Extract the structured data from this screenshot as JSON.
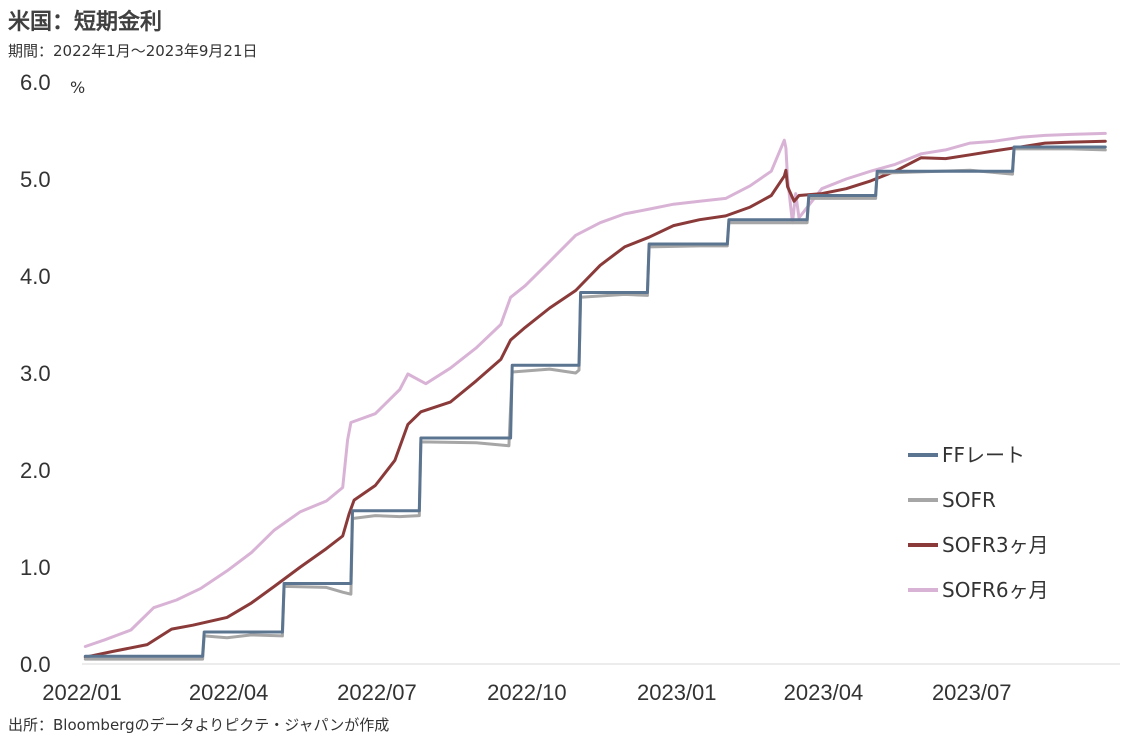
{
  "header": {
    "title": "米国：短期金利",
    "subtitle": "期間：2022年1月～2023年9月21日"
  },
  "footer": {
    "source": "出所：Bloombergのデータよりピクテ・ジャパンが作成"
  },
  "chart_data": {
    "type": "line",
    "y_unit": "%",
    "ylim": [
      0,
      6
    ],
    "y_ticks": [
      "0.0",
      "1.0",
      "2.0",
      "3.0",
      "4.0",
      "5.0",
      "6.0"
    ],
    "xlim": [
      "2022-01-01",
      "2023-09-30"
    ],
    "x_ticks": [
      {
        "date": "2022-01-01",
        "label": "2022/01"
      },
      {
        "date": "2022-04-01",
        "label": "2022/04"
      },
      {
        "date": "2022-07-01",
        "label": "2022/07"
      },
      {
        "date": "2022-10-01",
        "label": "2022/10"
      },
      {
        "date": "2023-01-01",
        "label": "2023/01"
      },
      {
        "date": "2023-04-01",
        "label": "2023/04"
      },
      {
        "date": "2023-07-01",
        "label": "2023/07"
      }
    ],
    "grid": false,
    "legend_position": "bottom-right",
    "series": [
      {
        "name": "FFレート",
        "color": "#5B7490",
        "points": [
          [
            "2022-01-03",
            0.08
          ],
          [
            "2022-03-16",
            0.08
          ],
          [
            "2022-03-17",
            0.33
          ],
          [
            "2022-05-04",
            0.33
          ],
          [
            "2022-05-05",
            0.83
          ],
          [
            "2022-06-15",
            0.83
          ],
          [
            "2022-06-16",
            1.58
          ],
          [
            "2022-07-27",
            1.58
          ],
          [
            "2022-07-28",
            2.33
          ],
          [
            "2022-09-21",
            2.33
          ],
          [
            "2022-09-22",
            3.08
          ],
          [
            "2022-11-02",
            3.08
          ],
          [
            "2022-11-03",
            3.83
          ],
          [
            "2022-12-14",
            3.83
          ],
          [
            "2022-12-15",
            4.33
          ],
          [
            "2023-02-01",
            4.33
          ],
          [
            "2023-02-02",
            4.58
          ],
          [
            "2023-03-22",
            4.58
          ],
          [
            "2023-03-23",
            4.83
          ],
          [
            "2023-05-03",
            4.83
          ],
          [
            "2023-05-04",
            5.08
          ],
          [
            "2023-07-26",
            5.08
          ],
          [
            "2023-07-27",
            5.33
          ],
          [
            "2023-09-21",
            5.33
          ]
        ]
      },
      {
        "name": "SOFR",
        "color": "#A6A6A6",
        "points": [
          [
            "2022-01-03",
            0.05
          ],
          [
            "2022-03-16",
            0.05
          ],
          [
            "2022-03-17",
            0.29
          ],
          [
            "2022-03-31",
            0.27
          ],
          [
            "2022-04-15",
            0.3
          ],
          [
            "2022-05-04",
            0.29
          ],
          [
            "2022-05-05",
            0.8
          ],
          [
            "2022-05-31",
            0.79
          ],
          [
            "2022-06-10",
            0.74
          ],
          [
            "2022-06-15",
            0.72
          ],
          [
            "2022-06-16",
            1.5
          ],
          [
            "2022-06-30",
            1.53
          ],
          [
            "2022-07-15",
            1.52
          ],
          [
            "2022-07-27",
            1.53
          ],
          [
            "2022-07-28",
            2.29
          ],
          [
            "2022-08-31",
            2.28
          ],
          [
            "2022-09-20",
            2.25
          ],
          [
            "2022-09-22",
            3.01
          ],
          [
            "2022-10-15",
            3.04
          ],
          [
            "2022-10-31",
            3.0
          ],
          [
            "2022-11-02",
            3.03
          ],
          [
            "2022-11-03",
            3.78
          ],
          [
            "2022-11-30",
            3.81
          ],
          [
            "2022-12-14",
            3.8
          ],
          [
            "2022-12-15",
            4.3
          ],
          [
            "2023-01-15",
            4.31
          ],
          [
            "2023-02-01",
            4.31
          ],
          [
            "2023-02-02",
            4.55
          ],
          [
            "2023-03-01",
            4.55
          ],
          [
            "2023-03-22",
            4.55
          ],
          [
            "2023-03-23",
            4.8
          ],
          [
            "2023-04-15",
            4.8
          ],
          [
            "2023-05-03",
            4.8
          ],
          [
            "2023-05-04",
            5.06
          ],
          [
            "2023-06-30",
            5.09
          ],
          [
            "2023-07-26",
            5.05
          ],
          [
            "2023-07-27",
            5.31
          ],
          [
            "2023-08-31",
            5.31
          ],
          [
            "2023-09-21",
            5.3
          ]
        ]
      },
      {
        "name": "SOFR3ヶ月",
        "color": "#8B3A3A",
        "points": [
          [
            "2022-01-03",
            0.07
          ],
          [
            "2022-01-20",
            0.13
          ],
          [
            "2022-02-10",
            0.2
          ],
          [
            "2022-02-25",
            0.36
          ],
          [
            "2022-03-10",
            0.4
          ],
          [
            "2022-03-31",
            0.48
          ],
          [
            "2022-04-15",
            0.63
          ],
          [
            "2022-04-29",
            0.8
          ],
          [
            "2022-05-15",
            1.0
          ],
          [
            "2022-05-31",
            1.19
          ],
          [
            "2022-06-10",
            1.32
          ],
          [
            "2022-06-14",
            1.55
          ],
          [
            "2022-06-17",
            1.69
          ],
          [
            "2022-06-30",
            1.84
          ],
          [
            "2022-07-12",
            2.1
          ],
          [
            "2022-07-20",
            2.47
          ],
          [
            "2022-07-28",
            2.6
          ],
          [
            "2022-08-15",
            2.7
          ],
          [
            "2022-08-31",
            2.92
          ],
          [
            "2022-09-15",
            3.14
          ],
          [
            "2022-09-21",
            3.34
          ],
          [
            "2022-09-30",
            3.47
          ],
          [
            "2022-10-15",
            3.67
          ],
          [
            "2022-10-31",
            3.85
          ],
          [
            "2022-11-15",
            4.11
          ],
          [
            "2022-11-30",
            4.3
          ],
          [
            "2022-12-15",
            4.4
          ],
          [
            "2022-12-30",
            4.52
          ],
          [
            "2023-01-15",
            4.58
          ],
          [
            "2023-01-31",
            4.62
          ],
          [
            "2023-02-15",
            4.71
          ],
          [
            "2023-02-28",
            4.83
          ],
          [
            "2023-03-08",
            5.03
          ],
          [
            "2023-03-09",
            5.09
          ],
          [
            "2023-03-10",
            4.92
          ],
          [
            "2023-03-14",
            4.77
          ],
          [
            "2023-03-17",
            4.83
          ],
          [
            "2023-03-31",
            4.85
          ],
          [
            "2023-04-15",
            4.9
          ],
          [
            "2023-04-30",
            4.98
          ],
          [
            "2023-05-15",
            5.08
          ],
          [
            "2023-05-31",
            5.22
          ],
          [
            "2023-06-15",
            5.21
          ],
          [
            "2023-06-30",
            5.25
          ],
          [
            "2023-07-15",
            5.29
          ],
          [
            "2023-07-31",
            5.33
          ],
          [
            "2023-08-15",
            5.37
          ],
          [
            "2023-08-31",
            5.38
          ],
          [
            "2023-09-21",
            5.39
          ]
        ]
      },
      {
        "name": "SOFR6ヶ月",
        "color": "#D9B3D6",
        "points": [
          [
            "2022-01-03",
            0.18
          ],
          [
            "2022-01-15",
            0.25
          ],
          [
            "2022-01-31",
            0.35
          ],
          [
            "2022-02-14",
            0.58
          ],
          [
            "2022-02-28",
            0.66
          ],
          [
            "2022-03-15",
            0.78
          ],
          [
            "2022-03-31",
            0.96
          ],
          [
            "2022-04-15",
            1.15
          ],
          [
            "2022-04-29",
            1.38
          ],
          [
            "2022-05-15",
            1.57
          ],
          [
            "2022-05-31",
            1.68
          ],
          [
            "2022-06-10",
            1.82
          ],
          [
            "2022-06-13",
            2.31
          ],
          [
            "2022-06-15",
            2.49
          ],
          [
            "2022-06-30",
            2.58
          ],
          [
            "2022-07-15",
            2.83
          ],
          [
            "2022-07-20",
            2.99
          ],
          [
            "2022-07-31",
            2.89
          ],
          [
            "2022-08-15",
            3.05
          ],
          [
            "2022-08-31",
            3.26
          ],
          [
            "2022-09-15",
            3.5
          ],
          [
            "2022-09-21",
            3.78
          ],
          [
            "2022-09-30",
            3.9
          ],
          [
            "2022-10-15",
            4.15
          ],
          [
            "2022-10-31",
            4.42
          ],
          [
            "2022-11-15",
            4.55
          ],
          [
            "2022-11-30",
            4.64
          ],
          [
            "2022-12-15",
            4.69
          ],
          [
            "2022-12-30",
            4.74
          ],
          [
            "2023-01-15",
            4.77
          ],
          [
            "2023-01-31",
            4.8
          ],
          [
            "2023-02-15",
            4.93
          ],
          [
            "2023-02-28",
            5.08
          ],
          [
            "2023-03-08",
            5.4
          ],
          [
            "2023-03-09",
            5.32
          ],
          [
            "2023-03-10",
            5.0
          ],
          [
            "2023-03-13",
            4.55
          ],
          [
            "2023-03-15",
            4.85
          ],
          [
            "2023-03-17",
            4.6
          ],
          [
            "2023-03-31",
            4.9
          ],
          [
            "2023-04-15",
            5.0
          ],
          [
            "2023-04-30",
            5.08
          ],
          [
            "2023-05-15",
            5.15
          ],
          [
            "2023-05-31",
            5.26
          ],
          [
            "2023-06-15",
            5.3
          ],
          [
            "2023-06-30",
            5.37
          ],
          [
            "2023-07-15",
            5.39
          ],
          [
            "2023-07-31",
            5.43
          ],
          [
            "2023-08-15",
            5.45
          ],
          [
            "2023-08-31",
            5.46
          ],
          [
            "2023-09-21",
            5.47
          ]
        ]
      }
    ]
  }
}
